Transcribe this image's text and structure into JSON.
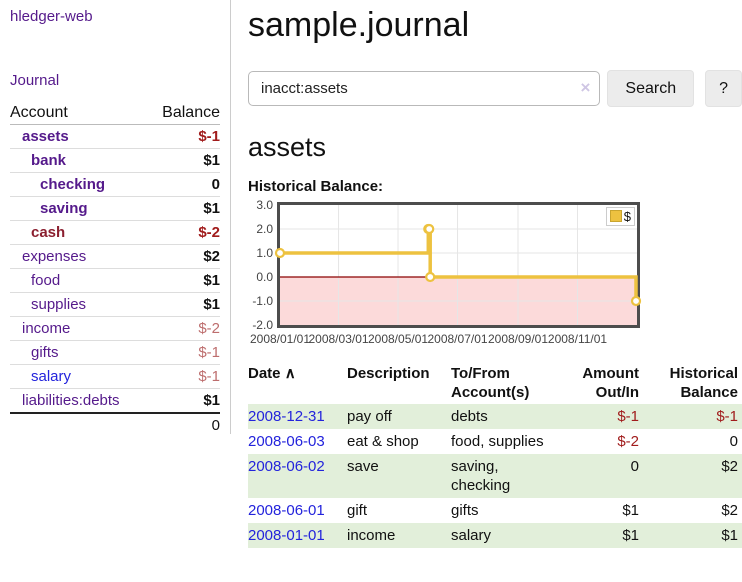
{
  "app": {
    "brand": "hledger-web"
  },
  "sidebar": {
    "journal_link": "Journal",
    "accounts": {
      "header_account": "Account",
      "header_balance": "Balance",
      "rows": [
        {
          "account": "assets",
          "depth": 0,
          "color": "purple",
          "bold": true,
          "balance": "$-1",
          "balance_color": "negative",
          "balance_bold": true
        },
        {
          "account": "bank",
          "depth": 1,
          "color": "purple",
          "bold": true,
          "balance": "$1",
          "balance_color": "black",
          "balance_bold": true
        },
        {
          "account": "checking",
          "depth": 2,
          "color": "purple",
          "bold": true,
          "balance": "0",
          "balance_color": "black",
          "balance_bold": true
        },
        {
          "account": "saving",
          "depth": 2,
          "color": "purple",
          "bold": true,
          "balance": "$1",
          "balance_color": "black",
          "balance_bold": true
        },
        {
          "account": "cash",
          "depth": 1,
          "color": "maroon",
          "bold": true,
          "balance": "$-2",
          "balance_color": "negative",
          "balance_bold": true
        },
        {
          "account": "expenses",
          "depth": 0,
          "color": "purple",
          "bold": false,
          "balance": "$2",
          "balance_color": "black",
          "balance_bold": true
        },
        {
          "account": "food",
          "depth": 1,
          "color": "purple",
          "bold": false,
          "balance": "$1",
          "balance_color": "black",
          "balance_bold": true
        },
        {
          "account": "supplies",
          "depth": 1,
          "color": "purple",
          "bold": false,
          "balance": "$1",
          "balance_color": "black",
          "balance_bold": true
        },
        {
          "account": "income",
          "depth": 0,
          "color": "purple",
          "bold": false,
          "balance": "$-2",
          "balance_color": "rosy",
          "balance_bold": false
        },
        {
          "account": "gifts",
          "depth": 1,
          "color": "purple",
          "bold": false,
          "balance": "$-1",
          "balance_color": "rosy",
          "balance_bold": false
        },
        {
          "account": "salary",
          "depth": 1,
          "color": "blue",
          "bold": false,
          "balance": "$-1",
          "balance_color": "rosy",
          "balance_bold": false
        },
        {
          "account": "liabilities:debts",
          "depth": 0,
          "color": "purple",
          "bold": false,
          "balance": "$1",
          "balance_color": "black",
          "balance_bold": true
        }
      ],
      "total_balance": "0"
    }
  },
  "main": {
    "title": "sample.journal",
    "search": {
      "value": "inacct:assets",
      "clear_icon": "×",
      "search_button": "Search",
      "help_button": "?"
    },
    "account_heading": "assets",
    "chart_title": "Historical Balance:"
  },
  "chart_data": {
    "type": "line",
    "step": true,
    "title": "Historical Balance",
    "x_range": [
      "2008-01-01",
      "2009-01-01"
    ],
    "y_range": [
      -2,
      3
    ],
    "y_ticks": [
      "3.0",
      "2.0",
      "1.0",
      "0.0",
      "-1.0",
      "-2.0"
    ],
    "x_ticks": [
      "2008/01/01",
      "2008/03/01",
      "2008/05/01",
      "2008/07/01",
      "2008/09/01",
      "2008/11/01"
    ],
    "series": [
      {
        "name": "$",
        "color": "#edc240",
        "points": [
          [
            "2008-01-01",
            1
          ],
          [
            "2008-06-01",
            2
          ],
          [
            "2008-06-02",
            2
          ],
          [
            "2008-06-03",
            0
          ],
          [
            "2008-12-31",
            -1
          ]
        ]
      }
    ],
    "legend_position": "top-right",
    "grid": true,
    "negative_region_color": "#fcdada",
    "zero_line_color": "#8b0000"
  },
  "register": {
    "headers": {
      "date": "Date",
      "sort_icon": "∧",
      "description": "Description",
      "accounts": "To/From Account(s)",
      "amount": "Amount Out/In",
      "balance": "Historical Balance"
    },
    "rows": [
      {
        "date": "2008-12-31",
        "description": "pay off",
        "accounts": "debts",
        "amount": "$-1",
        "amount_negative": true,
        "balance": "$-1",
        "balance_negative": true
      },
      {
        "date": "2008-06-03",
        "description": "eat & shop",
        "accounts": "food, supplies",
        "amount": "$-2",
        "amount_negative": true,
        "balance": "0",
        "balance_negative": false
      },
      {
        "date": "2008-06-02",
        "description": "save",
        "accounts": "saving, checking",
        "amount": "0",
        "amount_negative": false,
        "balance": "$2",
        "balance_negative": false
      },
      {
        "date": "2008-06-01",
        "description": "gift",
        "accounts": "gifts",
        "amount": "$1",
        "amount_negative": false,
        "balance": "$2",
        "balance_negative": false
      },
      {
        "date": "2008-01-01",
        "description": "income",
        "accounts": "salary",
        "amount": "$1",
        "amount_negative": false,
        "balance": "$1",
        "balance_negative": false
      }
    ]
  },
  "colors": {
    "link_purple": "#551a8b",
    "link_blue": "#2323dc",
    "negative_dark": "#a11c1c",
    "negative_soft": "#bd6d6d",
    "negative_account": "#8b1f2f",
    "row_stripe": "#e2efda",
    "series_gold": "#edc240",
    "negative_region": "#fcdada",
    "zero_line": "#8b0000"
  }
}
